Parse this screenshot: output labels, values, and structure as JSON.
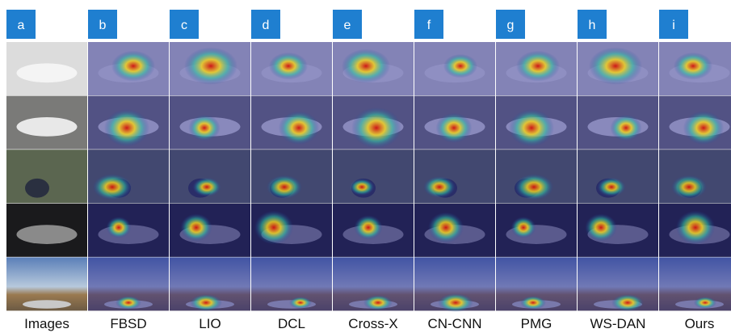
{
  "columns": [
    {
      "letter": "a",
      "caption": "Images"
    },
    {
      "letter": "b",
      "caption": "FBSD"
    },
    {
      "letter": "c",
      "caption": "LIO"
    },
    {
      "letter": "d",
      "caption": "DCL"
    },
    {
      "letter": "e",
      "caption": "Cross-X"
    },
    {
      "letter": "f",
      "caption": "CN-CNN"
    },
    {
      "letter": "g",
      "caption": "PMG"
    },
    {
      "letter": "h",
      "caption": "WS-DAN"
    },
    {
      "letter": "i",
      "caption": "Ours"
    }
  ]
}
